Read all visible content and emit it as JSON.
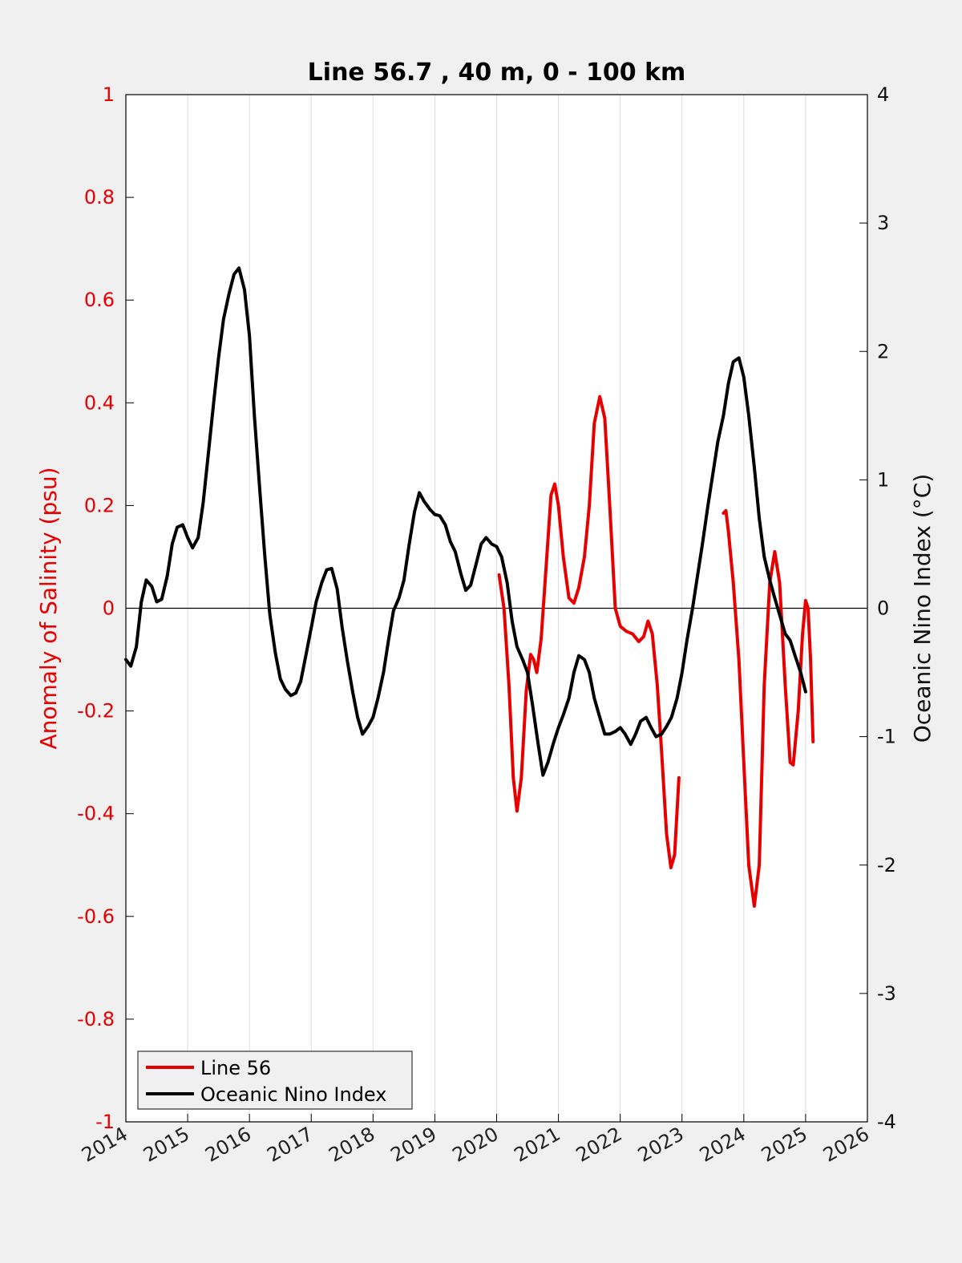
{
  "chart_data": {
    "type": "line",
    "title": "Line 56.7 , 40 m, 0 - 100 km",
    "ylabel_left": "Anomaly of Salinity (psu)",
    "ylabel_right": "Oceanic Nino Index (°C)",
    "xlim": [
      2014,
      2026
    ],
    "ylim_left": [
      -1,
      1
    ],
    "ylim_right": [
      -4,
      4
    ],
    "x_ticks": [
      "2014",
      "2015",
      "2016",
      "2017",
      "2018",
      "2019",
      "2020",
      "2021",
      "2022",
      "2023",
      "2024",
      "2025",
      "2026"
    ],
    "y_left_ticks": [
      "1",
      "0.8",
      "0.6",
      "0.4",
      "0.2",
      "0",
      "-0.2",
      "-0.4",
      "-0.6",
      "-0.8",
      "-1"
    ],
    "y_right_ticks": [
      "4",
      "3",
      "2",
      "1",
      "0",
      "-1",
      "-2",
      "-3",
      "-4"
    ],
    "grid": "vertical",
    "legend_position": "bottom-left",
    "colors": {
      "line56": "#e60000",
      "oni": "#000000",
      "axes_bg": "#ffffff",
      "figure_bg": "#f0f0f0"
    },
    "series": [
      {
        "name": "Line 56",
        "axis": "left",
        "segments": [
          [
            [
              2020.04,
              0.065
            ],
            [
              2020.12,
              0.0
            ],
            [
              2020.2,
              -0.15
            ],
            [
              2020.27,
              -0.33
            ],
            [
              2020.33,
              -0.395
            ],
            [
              2020.4,
              -0.33
            ],
            [
              2020.48,
              -0.16
            ],
            [
              2020.55,
              -0.09
            ],
            [
              2020.6,
              -0.1
            ],
            [
              2020.65,
              -0.125
            ],
            [
              2020.72,
              -0.06
            ],
            [
              2020.8,
              0.08
            ],
            [
              2020.88,
              0.22
            ],
            [
              2020.94,
              0.242
            ],
            [
              2021.0,
              0.2
            ],
            [
              2021.08,
              0.1
            ],
            [
              2021.17,
              0.02
            ],
            [
              2021.25,
              0.01
            ],
            [
              2021.33,
              0.04
            ],
            [
              2021.42,
              0.1
            ],
            [
              2021.5,
              0.2
            ],
            [
              2021.58,
              0.36
            ],
            [
              2021.67,
              0.412
            ],
            [
              2021.75,
              0.37
            ],
            [
              2021.83,
              0.2
            ],
            [
              2021.92,
              0.0
            ],
            [
              2022.0,
              -0.035
            ],
            [
              2022.1,
              -0.045
            ],
            [
              2022.2,
              -0.05
            ],
            [
              2022.3,
              -0.065
            ],
            [
              2022.38,
              -0.055
            ],
            [
              2022.45,
              -0.025
            ],
            [
              2022.52,
              -0.05
            ],
            [
              2022.6,
              -0.15
            ],
            [
              2022.67,
              -0.28
            ],
            [
              2022.75,
              -0.44
            ],
            [
              2022.82,
              -0.505
            ],
            [
              2022.88,
              -0.48
            ],
            [
              2022.95,
              -0.33
            ]
          ],
          [
            [
              2023.67,
              0.185
            ],
            [
              2023.71,
              0.19
            ],
            [
              2023.75,
              0.15
            ],
            [
              2023.83,
              0.05
            ],
            [
              2023.92,
              -0.1
            ],
            [
              2024.0,
              -0.3
            ],
            [
              2024.08,
              -0.5
            ],
            [
              2024.17,
              -0.58
            ],
            [
              2024.25,
              -0.5
            ],
            [
              2024.33,
              -0.15
            ],
            [
              2024.42,
              0.05
            ],
            [
              2024.5,
              0.11
            ],
            [
              2024.58,
              0.05
            ],
            [
              2024.67,
              -0.15
            ],
            [
              2024.75,
              -0.3
            ],
            [
              2024.8,
              -0.305
            ],
            [
              2024.88,
              -0.2
            ],
            [
              2024.95,
              -0.05
            ],
            [
              2025.0,
              0.015
            ],
            [
              2025.04,
              0.0
            ],
            [
              2025.08,
              -0.1
            ],
            [
              2025.12,
              -0.26
            ]
          ]
        ]
      },
      {
        "name": "Oceanic Nino Index",
        "axis": "right",
        "x": [
          2014.0,
          2014.08,
          2014.17,
          2014.25,
          2014.33,
          2014.42,
          2014.5,
          2014.58,
          2014.67,
          2014.75,
          2014.83,
          2014.92,
          2015.0,
          2015.08,
          2015.17,
          2015.25,
          2015.33,
          2015.42,
          2015.5,
          2015.58,
          2015.67,
          2015.75,
          2015.83,
          2015.92,
          2016.0,
          2016.08,
          2016.17,
          2016.25,
          2016.33,
          2016.42,
          2016.5,
          2016.58,
          2016.67,
          2016.75,
          2016.83,
          2016.92,
          2017.0,
          2017.08,
          2017.17,
          2017.25,
          2017.33,
          2017.42,
          2017.5,
          2017.58,
          2017.67,
          2017.75,
          2017.83,
          2017.92,
          2018.0,
          2018.08,
          2018.17,
          2018.25,
          2018.33,
          2018.42,
          2018.5,
          2018.58,
          2018.67,
          2018.75,
          2018.83,
          2018.92,
          2019.0,
          2019.08,
          2019.17,
          2019.25,
          2019.33,
          2019.42,
          2019.5,
          2019.58,
          2019.67,
          2019.75,
          2019.83,
          2019.92,
          2020.0,
          2020.08,
          2020.17,
          2020.25,
          2020.33,
          2020.42,
          2020.5,
          2020.58,
          2020.67,
          2020.75,
          2020.83,
          2020.92,
          2021.0,
          2021.08,
          2021.17,
          2021.25,
          2021.33,
          2021.42,
          2021.5,
          2021.58,
          2021.67,
          2021.75,
          2021.83,
          2021.92,
          2022.0,
          2022.08,
          2022.17,
          2022.25,
          2022.33,
          2022.42,
          2022.5,
          2022.58,
          2022.67,
          2022.75,
          2022.83,
          2022.92,
          2023.0,
          2023.08,
          2023.17,
          2023.25,
          2023.33,
          2023.42,
          2023.5,
          2023.58,
          2023.67,
          2023.75,
          2023.83,
          2023.92,
          2024.0,
          2024.08,
          2024.17,
          2024.25,
          2024.33,
          2024.42,
          2024.5,
          2024.58,
          2024.67,
          2024.75,
          2024.83,
          2024.92,
          2025.0
        ],
        "values": [
          -0.4,
          -0.45,
          -0.3,
          0.05,
          0.22,
          0.17,
          0.05,
          0.07,
          0.25,
          0.5,
          0.63,
          0.65,
          0.55,
          0.47,
          0.55,
          0.82,
          1.18,
          1.6,
          1.95,
          2.25,
          2.45,
          2.6,
          2.65,
          2.48,
          2.12,
          1.5,
          0.9,
          0.4,
          -0.05,
          -0.35,
          -0.55,
          -0.63,
          -0.68,
          -0.66,
          -0.57,
          -0.35,
          -0.15,
          0.05,
          0.2,
          0.3,
          0.31,
          0.15,
          -0.15,
          -0.4,
          -0.65,
          -0.85,
          -0.98,
          -0.92,
          -0.85,
          -0.7,
          -0.5,
          -0.25,
          -0.02,
          0.08,
          0.22,
          0.48,
          0.75,
          0.9,
          0.83,
          0.77,
          0.73,
          0.72,
          0.65,
          0.52,
          0.44,
          0.27,
          0.14,
          0.18,
          0.35,
          0.5,
          0.55,
          0.5,
          0.48,
          0.4,
          0.2,
          -0.1,
          -0.3,
          -0.4,
          -0.5,
          -0.75,
          -1.05,
          -1.3,
          -1.2,
          -1.05,
          -0.93,
          -0.83,
          -0.7,
          -0.5,
          -0.37,
          -0.4,
          -0.5,
          -0.7,
          -0.85,
          -0.98,
          -0.98,
          -0.96,
          -0.93,
          -0.98,
          -1.06,
          -0.98,
          -0.88,
          -0.85,
          -0.93,
          -1.0,
          -0.98,
          -0.92,
          -0.85,
          -0.7,
          -0.5,
          -0.25,
          0.0,
          0.25,
          0.5,
          0.8,
          1.05,
          1.3,
          1.5,
          1.75,
          1.92,
          1.95,
          1.8,
          1.5,
          1.1,
          0.7,
          0.4,
          0.22,
          0.08,
          -0.05,
          -0.2,
          -0.25,
          -0.37,
          -0.5,
          -0.65
        ]
      }
    ]
  }
}
